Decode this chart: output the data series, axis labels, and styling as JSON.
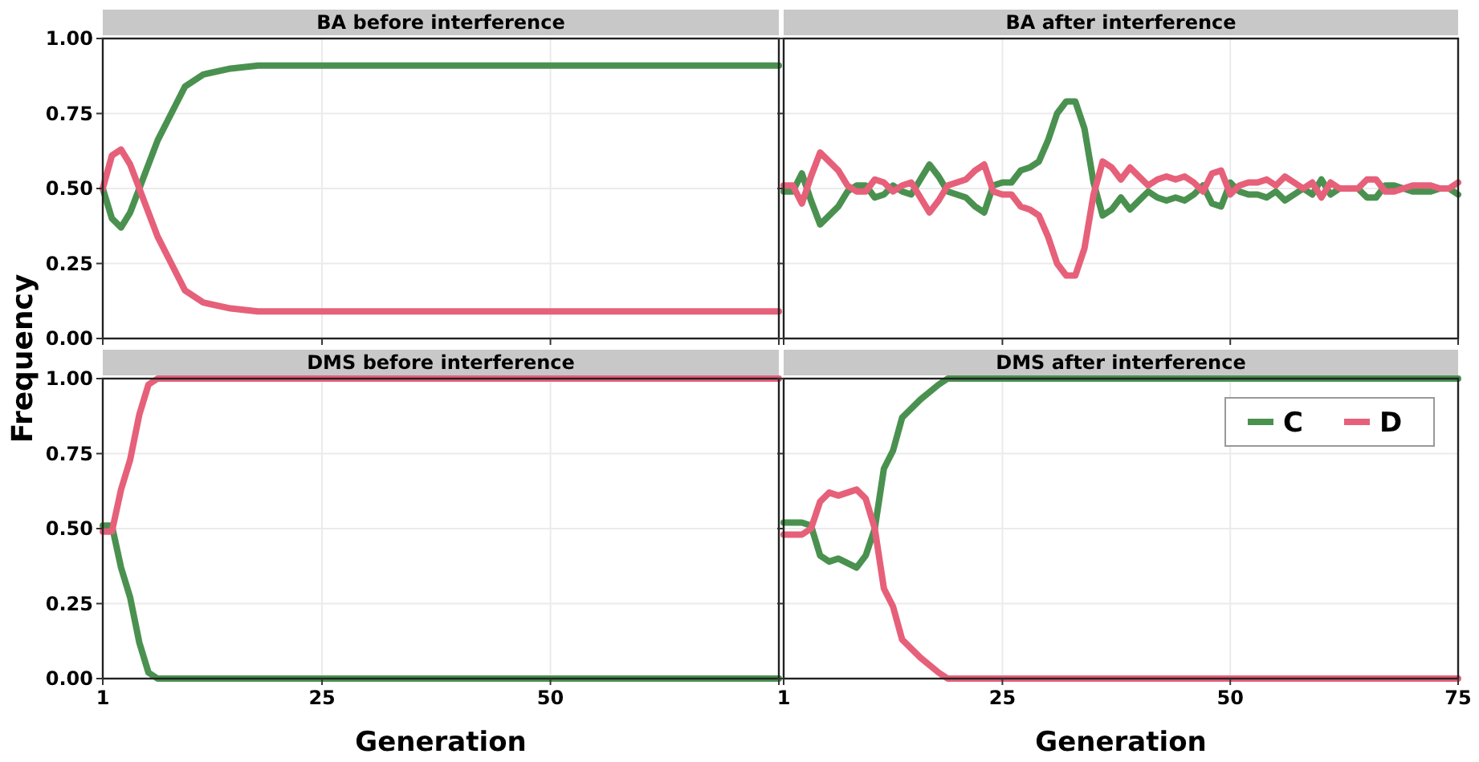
{
  "chart_data": [
    {
      "type": "line",
      "title": "BA before interference",
      "ylabel": "Frequency",
      "xlim": [
        1,
        75
      ],
      "ylim": [
        0,
        1
      ],
      "xticks": [
        1,
        25,
        50,
        {
          "value": 75,
          "label": null
        }
      ],
      "yticks": [
        {
          "value": 0,
          "label": "0.00"
        },
        {
          "value": 0.25,
          "label": "0.25"
        },
        {
          "value": 0.5,
          "label": "0.50"
        },
        {
          "value": 0.75,
          "label": "0.75"
        },
        {
          "value": 1,
          "label": "1.00"
        }
      ],
      "grid": true,
      "tick_labels": "y",
      "series": [
        {
          "color": "#4a9150",
          "x": [
            1,
            2,
            3,
            4,
            5,
            7,
            9,
            10,
            12,
            15,
            18,
            75
          ],
          "values": [
            0.5,
            0.4,
            0.37,
            0.42,
            0.5,
            0.66,
            0.78,
            0.84,
            0.88,
            0.9,
            0.91,
            0.91
          ]
        },
        {
          "color": "#e6607a",
          "x": [
            1,
            2,
            3,
            4,
            5,
            7,
            9,
            10,
            12,
            15,
            18,
            75
          ],
          "values": [
            0.5,
            0.61,
            0.63,
            0.58,
            0.5,
            0.34,
            0.22,
            0.16,
            0.12,
            0.1,
            0.09,
            0.09
          ]
        }
      ]
    },
    {
      "type": "line",
      "title": "BA after interference",
      "xlim": [
        1,
        75
      ],
      "ylim": [
        0,
        1
      ],
      "xticks": [
        1,
        25,
        50,
        75
      ],
      "yticks": [
        0,
        0.25,
        0.5,
        0.75,
        1
      ],
      "grid": true,
      "tick_labels": false,
      "series": [
        {
          "color": "#4a9150",
          "x": [
            1,
            2,
            3,
            4,
            5,
            6,
            7,
            8,
            9,
            10,
            11,
            12,
            13,
            14,
            15,
            16,
            17,
            18,
            19,
            20,
            21,
            22,
            23,
            24,
            25,
            26,
            27,
            28,
            29,
            30,
            31,
            32,
            33,
            34,
            35,
            36,
            37,
            38,
            39,
            40,
            41,
            42,
            43,
            44,
            45,
            46,
            47,
            48,
            49,
            50,
            51,
            52,
            53,
            54,
            55,
            56,
            57,
            58,
            59,
            60,
            61,
            62,
            63,
            64,
            65,
            66,
            67,
            68,
            69,
            70,
            71,
            72,
            73,
            74,
            75
          ],
          "values": [
            0.49,
            0.49,
            0.55,
            0.46,
            0.38,
            0.41,
            0.44,
            0.49,
            0.51,
            0.51,
            0.47,
            0.48,
            0.51,
            0.49,
            0.48,
            0.53,
            0.58,
            0.54,
            0.49,
            0.48,
            0.47,
            0.44,
            0.42,
            0.51,
            0.52,
            0.52,
            0.56,
            0.57,
            0.59,
            0.66,
            0.75,
            0.79,
            0.79,
            0.7,
            0.52,
            0.41,
            0.43,
            0.47,
            0.43,
            0.46,
            0.49,
            0.47,
            0.46,
            0.47,
            0.46,
            0.48,
            0.51,
            0.45,
            0.44,
            0.52,
            0.49,
            0.48,
            0.48,
            0.47,
            0.49,
            0.46,
            0.48,
            0.5,
            0.48,
            0.53,
            0.48,
            0.5,
            0.5,
            0.5,
            0.47,
            0.47,
            0.51,
            0.51,
            0.5,
            0.49,
            0.49,
            0.49,
            0.5,
            0.5,
            0.48
          ]
        },
        {
          "color": "#e6607a",
          "x": [
            1,
            2,
            3,
            4,
            5,
            6,
            7,
            8,
            9,
            10,
            11,
            12,
            13,
            14,
            15,
            16,
            17,
            18,
            19,
            20,
            21,
            22,
            23,
            24,
            25,
            26,
            27,
            28,
            29,
            30,
            31,
            32,
            33,
            34,
            35,
            36,
            37,
            38,
            39,
            40,
            41,
            42,
            43,
            44,
            45,
            46,
            47,
            48,
            49,
            50,
            51,
            52,
            53,
            54,
            55,
            56,
            57,
            58,
            59,
            60,
            61,
            62,
            63,
            64,
            65,
            66,
            67,
            68,
            69,
            70,
            71,
            72,
            73,
            74,
            75
          ],
          "values": [
            0.51,
            0.51,
            0.45,
            0.54,
            0.62,
            0.59,
            0.56,
            0.51,
            0.49,
            0.49,
            0.53,
            0.52,
            0.49,
            0.51,
            0.52,
            0.47,
            0.42,
            0.46,
            0.51,
            0.52,
            0.53,
            0.56,
            0.58,
            0.49,
            0.48,
            0.48,
            0.44,
            0.43,
            0.41,
            0.34,
            0.25,
            0.21,
            0.21,
            0.3,
            0.48,
            0.59,
            0.57,
            0.53,
            0.57,
            0.54,
            0.51,
            0.53,
            0.54,
            0.53,
            0.54,
            0.52,
            0.49,
            0.55,
            0.56,
            0.48,
            0.51,
            0.52,
            0.52,
            0.53,
            0.51,
            0.54,
            0.52,
            0.5,
            0.52,
            0.47,
            0.52,
            0.5,
            0.5,
            0.5,
            0.53,
            0.53,
            0.49,
            0.49,
            0.5,
            0.51,
            0.51,
            0.51,
            0.5,
            0.5,
            0.52
          ]
        }
      ]
    },
    {
      "type": "line",
      "title": "DMS before interference",
      "xlabel": "Generation",
      "xlim": [
        1,
        75
      ],
      "ylim": [
        0,
        1
      ],
      "xticks": [
        1,
        25,
        50,
        {
          "value": 75,
          "label": null
        }
      ],
      "yticks": [
        {
          "value": 0,
          "label": "0.00"
        },
        {
          "value": 0.25,
          "label": "0.25"
        },
        {
          "value": 0.5,
          "label": "0.50"
        },
        {
          "value": 0.75,
          "label": "0.75"
        },
        {
          "value": 1,
          "label": "1.00"
        }
      ],
      "grid": true,
      "series": [
        {
          "color": "#4a9150",
          "x": [
            1,
            2,
            3,
            4,
            5,
            6,
            7,
            75
          ],
          "values": [
            0.51,
            0.51,
            0.37,
            0.27,
            0.12,
            0.02,
            0,
            0
          ]
        },
        {
          "color": "#e6607a",
          "x": [
            1,
            2,
            3,
            4,
            5,
            6,
            7,
            75
          ],
          "values": [
            0.49,
            0.49,
            0.63,
            0.73,
            0.88,
            0.98,
            1,
            1
          ]
        }
      ]
    },
    {
      "type": "line",
      "title": "DMS after interference",
      "xlabel": "Generation",
      "xlim": [
        1,
        75
      ],
      "ylim": [
        0,
        1
      ],
      "xticks": [
        1,
        25,
        50,
        75
      ],
      "yticks": [
        0,
        0.25,
        0.5,
        0.75,
        1
      ],
      "grid": true,
      "tick_labels": "x",
      "legend": "top right",
      "series": [
        {
          "name": "C",
          "color": "#4a9150",
          "x": [
            1,
            3,
            4,
            5,
            6,
            7,
            9,
            10,
            11,
            12,
            13,
            14,
            16,
            18,
            19,
            75
          ],
          "values": [
            0.52,
            0.52,
            0.51,
            0.41,
            0.39,
            0.4,
            0.37,
            0.41,
            0.5,
            0.7,
            0.76,
            0.87,
            0.93,
            0.98,
            1,
            1
          ]
        },
        {
          "name": "D",
          "color": "#e6607a",
          "x": [
            1,
            3,
            4,
            5,
            6,
            7,
            9,
            10,
            11,
            12,
            13,
            14,
            16,
            18,
            19,
            75
          ],
          "values": [
            0.48,
            0.48,
            0.5,
            0.59,
            0.62,
            0.61,
            0.63,
            0.6,
            0.5,
            0.3,
            0.24,
            0.13,
            0.07,
            0.02,
            0,
            0
          ]
        }
      ]
    }
  ]
}
